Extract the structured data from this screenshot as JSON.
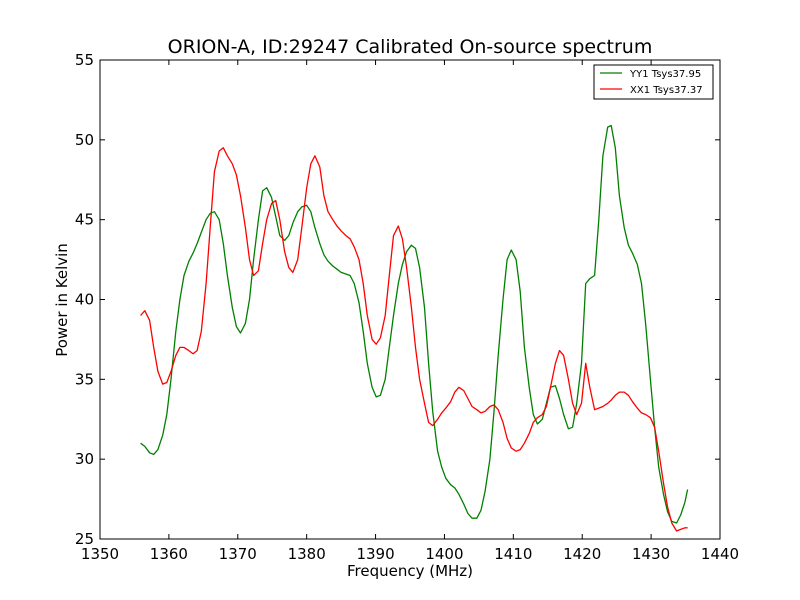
{
  "chart_data": {
    "type": "line",
    "title": "ORION-A, ID:29247 Calibrated On-source spectrum",
    "xlabel": "Frequency (MHz)",
    "ylabel": "Power in Kelvin",
    "xlim": [
      1350,
      1440
    ],
    "ylim": [
      25,
      55
    ],
    "x_ticks": [
      1350,
      1360,
      1370,
      1380,
      1390,
      1400,
      1410,
      1420,
      1430,
      1440
    ],
    "y_ticks": [
      25,
      30,
      35,
      40,
      45,
      50,
      55
    ],
    "grid": false,
    "legend_position": "top-right",
    "series": [
      {
        "name": "YY1 Tsys37.95",
        "color": "#008000",
        "points": [
          [
            1355.9,
            31.0
          ],
          [
            1356.5,
            30.8
          ],
          [
            1357.2,
            30.4
          ],
          [
            1357.8,
            30.3
          ],
          [
            1358.4,
            30.6
          ],
          [
            1359.1,
            31.5
          ],
          [
            1359.7,
            32.8
          ],
          [
            1360.3,
            35.0
          ],
          [
            1361.0,
            38.0
          ],
          [
            1361.6,
            40.0
          ],
          [
            1362.2,
            41.5
          ],
          [
            1362.9,
            42.4
          ],
          [
            1363.5,
            42.9
          ],
          [
            1364.1,
            43.5
          ],
          [
            1364.7,
            44.2
          ],
          [
            1365.4,
            45.0
          ],
          [
            1366.0,
            45.4
          ],
          [
            1366.6,
            45.5
          ],
          [
            1367.3,
            45.0
          ],
          [
            1367.9,
            43.5
          ],
          [
            1368.5,
            41.5
          ],
          [
            1369.2,
            39.5
          ],
          [
            1369.8,
            38.3
          ],
          [
            1370.4,
            37.9
          ],
          [
            1371.1,
            38.5
          ],
          [
            1371.7,
            40.0
          ],
          [
            1372.3,
            42.5
          ],
          [
            1373.0,
            45.0
          ],
          [
            1373.6,
            46.8
          ],
          [
            1374.2,
            47.0
          ],
          [
            1374.9,
            46.4
          ],
          [
            1375.5,
            45.2
          ],
          [
            1376.1,
            44.0
          ],
          [
            1376.8,
            43.7
          ],
          [
            1377.4,
            44.0
          ],
          [
            1378.0,
            44.8
          ],
          [
            1378.7,
            45.5
          ],
          [
            1379.3,
            45.8
          ],
          [
            1380.0,
            45.9
          ],
          [
            1380.6,
            45.5
          ],
          [
            1381.2,
            44.5
          ],
          [
            1381.9,
            43.5
          ],
          [
            1382.5,
            42.8
          ],
          [
            1383.1,
            42.4
          ],
          [
            1383.8,
            42.1
          ],
          [
            1384.4,
            41.9
          ],
          [
            1385.0,
            41.7
          ],
          [
            1385.7,
            41.6
          ],
          [
            1386.3,
            41.5
          ],
          [
            1386.9,
            41.0
          ],
          [
            1387.6,
            39.8
          ],
          [
            1388.2,
            38.0
          ],
          [
            1388.8,
            36.0
          ],
          [
            1389.5,
            34.5
          ],
          [
            1390.1,
            33.9
          ],
          [
            1390.7,
            34.0
          ],
          [
            1391.4,
            35.0
          ],
          [
            1392.0,
            37.0
          ],
          [
            1392.6,
            39.0
          ],
          [
            1393.3,
            41.0
          ],
          [
            1393.9,
            42.2
          ],
          [
            1394.5,
            43.0
          ],
          [
            1395.2,
            43.4
          ],
          [
            1395.8,
            43.2
          ],
          [
            1396.4,
            42.0
          ],
          [
            1397.1,
            39.5
          ],
          [
            1397.7,
            36.0
          ],
          [
            1398.3,
            33.0
          ],
          [
            1399.0,
            30.5
          ],
          [
            1399.6,
            29.5
          ],
          [
            1400.2,
            28.8
          ],
          [
            1400.9,
            28.4
          ],
          [
            1401.5,
            28.2
          ],
          [
            1402.1,
            27.8
          ],
          [
            1402.8,
            27.2
          ],
          [
            1403.4,
            26.6
          ],
          [
            1404.0,
            26.3
          ],
          [
            1404.7,
            26.3
          ],
          [
            1405.3,
            26.8
          ],
          [
            1405.9,
            28.0
          ],
          [
            1406.6,
            30.0
          ],
          [
            1407.2,
            33.0
          ],
          [
            1407.8,
            36.5
          ],
          [
            1408.5,
            40.0
          ],
          [
            1409.1,
            42.5
          ],
          [
            1409.7,
            43.1
          ],
          [
            1410.4,
            42.5
          ],
          [
            1411.0,
            40.5
          ],
          [
            1411.6,
            37.0
          ],
          [
            1412.3,
            34.5
          ],
          [
            1412.9,
            32.8
          ],
          [
            1413.5,
            32.2
          ],
          [
            1414.2,
            32.5
          ],
          [
            1414.8,
            33.5
          ],
          [
            1415.4,
            34.5
          ],
          [
            1416.1,
            34.6
          ],
          [
            1416.7,
            33.8
          ],
          [
            1417.3,
            32.8
          ],
          [
            1418.0,
            31.9
          ],
          [
            1418.6,
            32.0
          ],
          [
            1419.2,
            33.5
          ],
          [
            1419.9,
            36.0
          ],
          [
            1420.5,
            41.0
          ],
          [
            1421.1,
            41.3
          ],
          [
            1421.8,
            41.5
          ],
          [
            1422.4,
            45.0
          ],
          [
            1423.0,
            49.0
          ],
          [
            1423.7,
            50.8
          ],
          [
            1424.2,
            50.9
          ],
          [
            1424.8,
            49.5
          ],
          [
            1425.4,
            46.5
          ],
          [
            1426.1,
            44.5
          ],
          [
            1426.7,
            43.4
          ],
          [
            1427.3,
            42.9
          ],
          [
            1428.0,
            42.2
          ],
          [
            1428.6,
            41.0
          ],
          [
            1429.2,
            38.5
          ],
          [
            1429.9,
            35.0
          ],
          [
            1430.5,
            32.0
          ],
          [
            1431.1,
            29.5
          ],
          [
            1431.8,
            27.8
          ],
          [
            1432.4,
            26.7
          ],
          [
            1433.0,
            26.1
          ],
          [
            1433.7,
            26.0
          ],
          [
            1434.3,
            26.5
          ],
          [
            1434.9,
            27.3
          ],
          [
            1435.3,
            28.1
          ]
        ]
      },
      {
        "name": "XX1 Tsys37.37",
        "color": "#ff0000",
        "points": [
          [
            1355.9,
            39.0
          ],
          [
            1356.5,
            39.3
          ],
          [
            1357.2,
            38.7
          ],
          [
            1357.8,
            37.0
          ],
          [
            1358.4,
            35.5
          ],
          [
            1359.1,
            34.7
          ],
          [
            1359.7,
            34.8
          ],
          [
            1360.3,
            35.5
          ],
          [
            1361.0,
            36.5
          ],
          [
            1361.6,
            37.0
          ],
          [
            1362.2,
            37.0
          ],
          [
            1362.9,
            36.8
          ],
          [
            1363.5,
            36.6
          ],
          [
            1364.1,
            36.8
          ],
          [
            1364.7,
            38.0
          ],
          [
            1365.4,
            41.0
          ],
          [
            1366.0,
            44.5
          ],
          [
            1366.6,
            48.0
          ],
          [
            1367.3,
            49.3
          ],
          [
            1367.9,
            49.5
          ],
          [
            1368.5,
            49.0
          ],
          [
            1369.2,
            48.5
          ],
          [
            1369.8,
            47.8
          ],
          [
            1370.4,
            46.5
          ],
          [
            1371.1,
            44.5
          ],
          [
            1371.7,
            42.5
          ],
          [
            1372.3,
            41.5
          ],
          [
            1373.0,
            41.8
          ],
          [
            1373.6,
            43.5
          ],
          [
            1374.2,
            45.0
          ],
          [
            1374.9,
            46.0
          ],
          [
            1375.5,
            46.2
          ],
          [
            1376.1,
            45.0
          ],
          [
            1376.8,
            43.0
          ],
          [
            1377.4,
            42.0
          ],
          [
            1378.0,
            41.7
          ],
          [
            1378.7,
            42.5
          ],
          [
            1379.3,
            44.5
          ],
          [
            1380.0,
            47.0
          ],
          [
            1380.6,
            48.5
          ],
          [
            1381.2,
            49.0
          ],
          [
            1381.9,
            48.3
          ],
          [
            1382.5,
            46.5
          ],
          [
            1383.1,
            45.5
          ],
          [
            1383.8,
            45.0
          ],
          [
            1384.4,
            44.6
          ],
          [
            1385.0,
            44.3
          ],
          [
            1385.7,
            44.0
          ],
          [
            1386.3,
            43.8
          ],
          [
            1386.9,
            43.3
          ],
          [
            1387.6,
            42.5
          ],
          [
            1388.2,
            41.0
          ],
          [
            1388.8,
            39.0
          ],
          [
            1389.5,
            37.5
          ],
          [
            1390.1,
            37.2
          ],
          [
            1390.7,
            37.6
          ],
          [
            1391.4,
            39.0
          ],
          [
            1392.0,
            41.5
          ],
          [
            1392.6,
            44.0
          ],
          [
            1393.3,
            44.6
          ],
          [
            1393.9,
            43.8
          ],
          [
            1394.5,
            42.0
          ],
          [
            1395.2,
            39.5
          ],
          [
            1395.8,
            37.0
          ],
          [
            1396.4,
            35.0
          ],
          [
            1397.1,
            33.5
          ],
          [
            1397.7,
            32.3
          ],
          [
            1398.3,
            32.1
          ],
          [
            1399.0,
            32.5
          ],
          [
            1399.6,
            32.9
          ],
          [
            1400.2,
            33.2
          ],
          [
            1400.9,
            33.6
          ],
          [
            1401.5,
            34.2
          ],
          [
            1402.1,
            34.5
          ],
          [
            1402.8,
            34.3
          ],
          [
            1403.4,
            33.8
          ],
          [
            1404.0,
            33.3
          ],
          [
            1404.7,
            33.1
          ],
          [
            1405.3,
            32.9
          ],
          [
            1405.9,
            33.0
          ],
          [
            1406.6,
            33.3
          ],
          [
            1407.2,
            33.4
          ],
          [
            1407.8,
            33.1
          ],
          [
            1408.5,
            32.3
          ],
          [
            1409.1,
            31.3
          ],
          [
            1409.7,
            30.7
          ],
          [
            1410.4,
            30.5
          ],
          [
            1411.0,
            30.6
          ],
          [
            1411.6,
            31.0
          ],
          [
            1412.3,
            31.6
          ],
          [
            1412.9,
            32.3
          ],
          [
            1413.5,
            32.6
          ],
          [
            1414.2,
            32.8
          ],
          [
            1414.8,
            33.3
          ],
          [
            1415.4,
            34.5
          ],
          [
            1416.1,
            36.0
          ],
          [
            1416.7,
            36.8
          ],
          [
            1417.3,
            36.5
          ],
          [
            1418.0,
            35.0
          ],
          [
            1418.6,
            33.5
          ],
          [
            1419.2,
            32.8
          ],
          [
            1419.9,
            33.5
          ],
          [
            1420.5,
            36.0
          ],
          [
            1421.1,
            34.5
          ],
          [
            1421.8,
            33.1
          ],
          [
            1422.4,
            33.2
          ],
          [
            1423.0,
            33.3
          ],
          [
            1423.7,
            33.5
          ],
          [
            1424.2,
            33.7
          ],
          [
            1424.8,
            34.0
          ],
          [
            1425.4,
            34.2
          ],
          [
            1426.1,
            34.2
          ],
          [
            1426.7,
            34.0
          ],
          [
            1427.3,
            33.6
          ],
          [
            1428.0,
            33.2
          ],
          [
            1428.6,
            32.9
          ],
          [
            1429.2,
            32.8
          ],
          [
            1429.9,
            32.6
          ],
          [
            1430.5,
            32.0
          ],
          [
            1431.1,
            30.5
          ],
          [
            1431.8,
            28.5
          ],
          [
            1432.4,
            27.0
          ],
          [
            1433.0,
            26.0
          ],
          [
            1433.7,
            25.5
          ],
          [
            1434.3,
            25.6
          ],
          [
            1434.9,
            25.7
          ],
          [
            1435.3,
            25.7
          ]
        ]
      }
    ]
  }
}
